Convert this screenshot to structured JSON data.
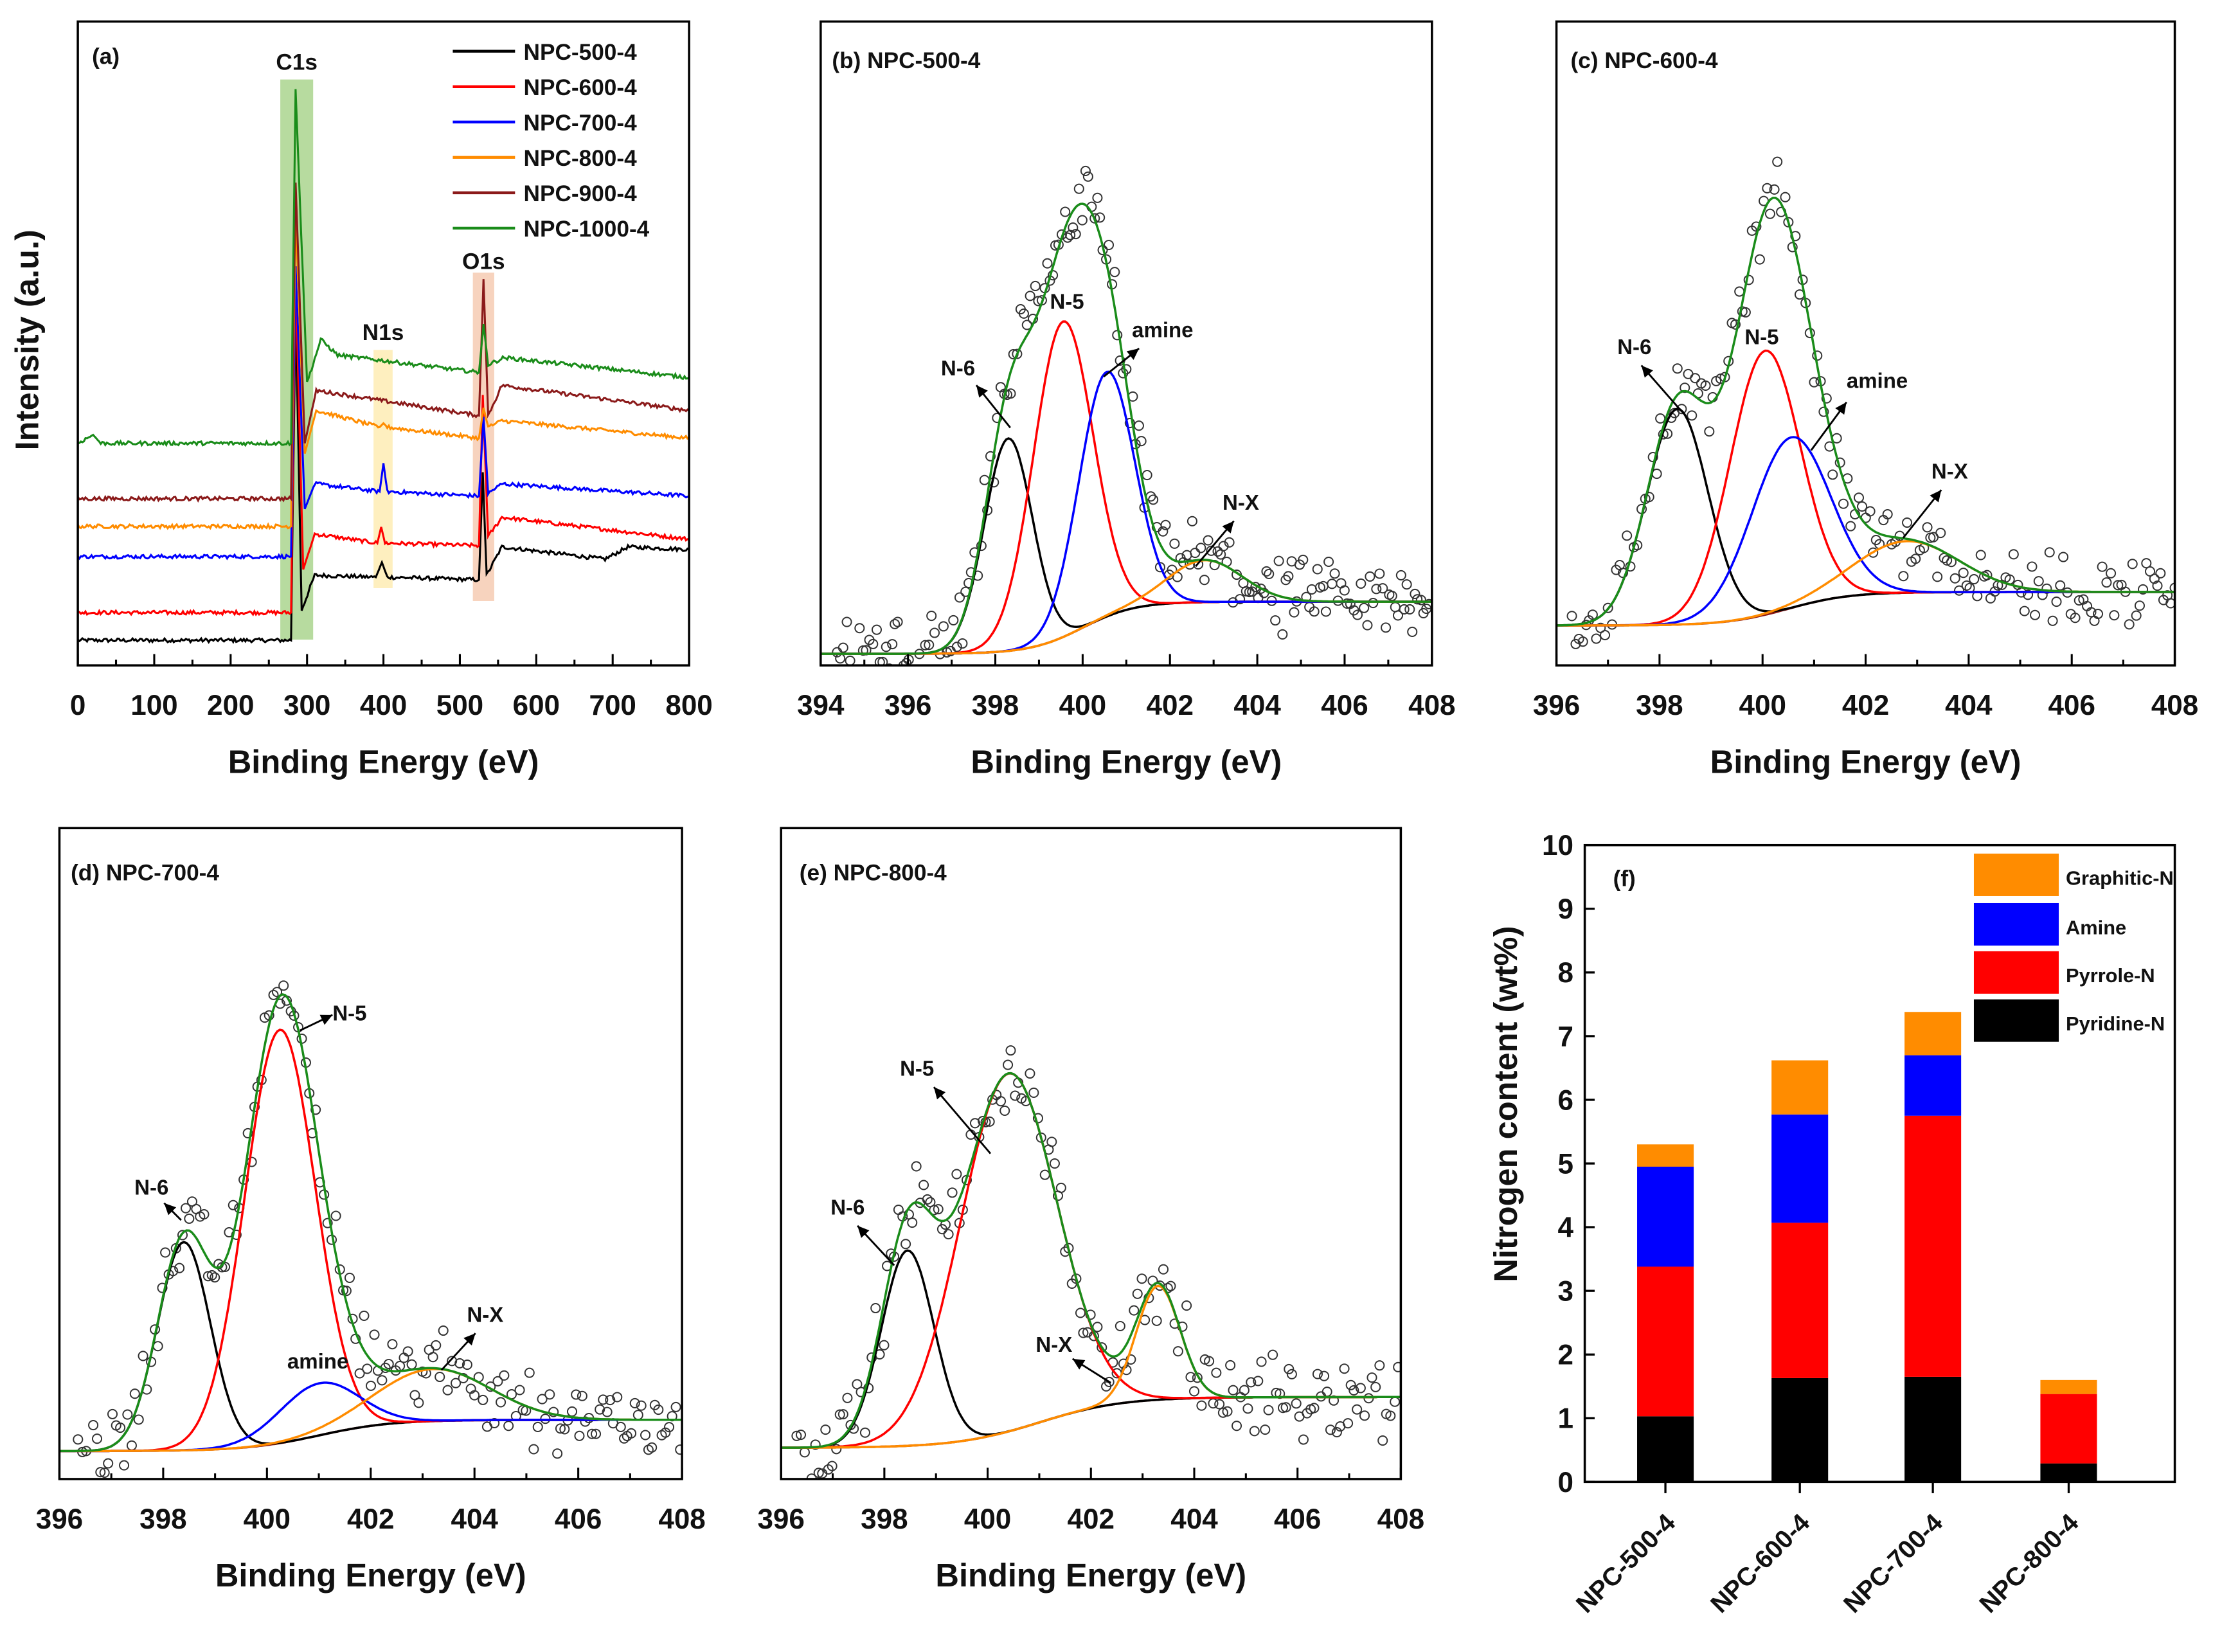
{
  "chart_data": [
    {
      "panel": "a",
      "type": "line",
      "title": "(a)",
      "xlabel": "Binding Energy (eV)",
      "ylabel": "Intensity (a.u.)",
      "xlim": [
        0,
        800
      ],
      "ylim": [
        0,
        100
      ],
      "xticks": [
        0,
        100,
        200,
        300,
        400,
        500,
        600,
        700,
        800
      ],
      "grid": false,
      "legend": "top-right",
      "bands": [
        {
          "label": "C1s",
          "range": [
            265,
            308
          ],
          "ylim": [
            4,
            91
          ],
          "color": "#9fcf7f"
        },
        {
          "label": "N1s",
          "range": [
            387,
            412
          ],
          "ylim": [
            12,
            49
          ],
          "color": "#fde9a9"
        },
        {
          "label": "O1s",
          "range": [
            517,
            545
          ],
          "ylim": [
            10,
            61
          ],
          "color": "#f4c4a8"
        }
      ],
      "series": [
        {
          "name": "NPC-500-4",
          "color": "#000000",
          "points": [
            [
              0,
              3.9
            ],
            [
              279,
              3.9
            ],
            [
              285,
              55
            ],
            [
              293,
              8.6
            ],
            [
              310,
              14
            ],
            [
              390,
              13.7
            ],
            [
              398,
              16
            ],
            [
              405,
              13.7
            ],
            [
              525,
              13.3
            ],
            [
              530,
              30
            ],
            [
              535,
              14
            ],
            [
              555,
              18.4
            ],
            [
              690,
              16.5
            ],
            [
              720,
              18.4
            ],
            [
              800,
              18
            ]
          ]
        },
        {
          "name": "NPC-600-4",
          "color": "#ff0000",
          "points": [
            [
              0,
              8.2
            ],
            [
              279,
              8.2
            ],
            [
              285,
              60
            ],
            [
              295,
              14.9
            ],
            [
              310,
              20.4
            ],
            [
              392,
              19
            ],
            [
              397,
              21.5
            ],
            [
              402,
              19
            ],
            [
              525,
              18.6
            ],
            [
              530,
              42
            ],
            [
              537,
              20
            ],
            [
              555,
              23
            ],
            [
              800,
              19.6
            ]
          ]
        },
        {
          "name": "NPC-700-4",
          "color": "#0000ff",
          "points": [
            [
              0,
              16.9
            ],
            [
              279,
              16.9
            ],
            [
              285,
              62
            ],
            [
              297,
              24.3
            ],
            [
              310,
              28.2
            ],
            [
              395,
              27
            ],
            [
              400,
              31.4
            ],
            [
              405,
              27
            ],
            [
              525,
              26.3
            ],
            [
              531,
              38.6
            ],
            [
              537,
              26.7
            ],
            [
              555,
              28.2
            ],
            [
              800,
              26.3
            ]
          ]
        },
        {
          "name": "NPC-800-4",
          "color": "#ff8c00",
          "points": [
            [
              0,
              21.6
            ],
            [
              279,
              21.6
            ],
            [
              285,
              70
            ],
            [
              297,
              32.9
            ],
            [
              312,
              39.6
            ],
            [
              395,
              37
            ],
            [
              400,
              37.6
            ],
            [
              405,
              37
            ],
            [
              525,
              35.3
            ],
            [
              531,
              40
            ],
            [
              537,
              37
            ],
            [
              555,
              38
            ],
            [
              800,
              35.3
            ]
          ]
        },
        {
          "name": "NPC-900-4",
          "color": "#8b1a1a",
          "points": [
            [
              0,
              25.9
            ],
            [
              279,
              25.9
            ],
            [
              285,
              75
            ],
            [
              297,
              34.5
            ],
            [
              312,
              42.7
            ],
            [
              525,
              38.8
            ],
            [
              531,
              60
            ],
            [
              537,
              38.8
            ],
            [
              555,
              43.5
            ],
            [
              800,
              39.6
            ]
          ]
        },
        {
          "name": "NPC-1000-4",
          "color": "#1a8c1a",
          "points": [
            [
              0,
              34.5
            ],
            [
              20,
              35.8
            ],
            [
              30,
              34.5
            ],
            [
              279,
              34.5
            ],
            [
              285,
              89.5
            ],
            [
              300,
              43.9
            ],
            [
              318,
              50.6
            ],
            [
              340,
              48.2
            ],
            [
              525,
              45.5
            ],
            [
              531,
              53
            ],
            [
              537,
              46.7
            ],
            [
              558,
              47.8
            ],
            [
              800,
              44.7
            ]
          ]
        }
      ]
    },
    {
      "panel": "b",
      "type": "line+scatter",
      "title": "(b) NPC-500-4",
      "xlabel": "Binding Energy (eV)",
      "xlim": [
        394,
        408
      ],
      "ylim": [
        0,
        100
      ],
      "xticks": [
        394,
        396,
        398,
        400,
        402,
        404,
        406,
        408
      ],
      "background": {
        "left": 1.8,
        "right": 9.9,
        "center": 400,
        "width": 0.6,
        "color": "#8b1a1a"
      },
      "envelope_color": "#1a8c1a",
      "components": [
        {
          "name": "N-6",
          "center": 398.3,
          "height": 33,
          "fwhm": 1.3,
          "color": "#000000"
        },
        {
          "name": "N-5",
          "center": 399.55,
          "height": 49,
          "fwhm": 1.6,
          "color": "#ff0000"
        },
        {
          "name": "amine",
          "center": 400.55,
          "height": 38,
          "fwhm": 1.5,
          "color": "#0000ff"
        },
        {
          "name": "N-X",
          "center": 402.8,
          "height": 6.5,
          "fwhm": 2.0,
          "color": "#ff8c00"
        }
      ]
    },
    {
      "panel": "c",
      "type": "line+scatter",
      "title": "(c) NPC-600-4",
      "xlabel": "Binding Energy (eV)",
      "xlim": [
        396,
        408
      ],
      "ylim": [
        0,
        100
      ],
      "xticks": [
        396,
        398,
        400,
        402,
        404,
        406,
        408
      ],
      "background": {
        "left": 6.2,
        "right": 11.4,
        "center": 400.5,
        "width": 0.6,
        "color": "#8b1a1a"
      },
      "envelope_color": "#1a8c1a",
      "components": [
        {
          "name": "N-6",
          "center": 398.35,
          "height": 33.5,
          "fwhm": 1.4,
          "color": "#000000"
        },
        {
          "name": "N-5",
          "center": 400.05,
          "height": 41,
          "fwhm": 1.6,
          "color": "#ff0000"
        },
        {
          "name": "amine",
          "center": 400.55,
          "height": 26.5,
          "fwhm": 1.8,
          "color": "#0000ff"
        },
        {
          "name": "N-X",
          "center": 402.8,
          "height": 8,
          "fwhm": 2.4,
          "color": "#ff8c00"
        }
      ]
    },
    {
      "panel": "d",
      "type": "line+scatter",
      "title": "(d) NPC-700-4",
      "xlabel": "Binding Energy (eV)",
      "xlim": [
        396,
        408
      ],
      "ylim": [
        0,
        100
      ],
      "xticks": [
        396,
        398,
        400,
        402,
        404,
        406,
        408
      ],
      "background": {
        "left": 4.3,
        "right": 9.1,
        "center": 401,
        "width": 0.7,
        "color": "#8b1a1a"
      },
      "envelope_color": "#1a8c1a",
      "components": [
        {
          "name": "N-6",
          "center": 398.4,
          "height": 32,
          "fwhm": 1.2,
          "color": "#000000"
        },
        {
          "name": "N-5",
          "center": 400.25,
          "height": 63.5,
          "fwhm": 1.6,
          "color": "#ff0000"
        },
        {
          "name": "amine",
          "center": 401.0,
          "height": 8,
          "fwhm": 1.8,
          "color": "#0000ff"
        },
        {
          "name": "N-X",
          "center": 403.2,
          "height": 8,
          "fwhm": 2.6,
          "color": "#ff8c00"
        }
      ]
    },
    {
      "panel": "e",
      "type": "line+scatter",
      "title": "(e) NPC-800-4",
      "xlabel": "Binding Energy (eV)",
      "xlim": [
        396,
        408
      ],
      "ylim": [
        0,
        100
      ],
      "xticks": [
        396,
        398,
        400,
        402,
        404,
        406,
        408
      ],
      "background": {
        "left": 4.8,
        "right": 12.6,
        "center": 401,
        "width": 0.8,
        "color": "#8b1a1a"
      },
      "envelope_color": "#1a8c1a",
      "components": [
        {
          "name": "N-6",
          "center": 398.45,
          "height": 30,
          "fwhm": 1.2,
          "color": "#000000"
        },
        {
          "name": "N-5",
          "center": 400.4,
          "height": 55,
          "fwhm": 2.2,
          "color": "#ff0000"
        },
        {
          "name": "N-X",
          "center": 403.3,
          "height": 17.5,
          "fwhm": 1.0,
          "color": "#ff8c00"
        }
      ]
    },
    {
      "panel": "f",
      "type": "bar",
      "stacked": true,
      "title": "(f)",
      "xlabel": "",
      "ylabel": "Nitrogen content (wt%)",
      "ylim": [
        0,
        10
      ],
      "yticks": [
        0,
        1,
        2,
        3,
        4,
        5,
        6,
        7,
        8,
        9,
        10
      ],
      "legend": "top-right",
      "categories": [
        "NPC-500-4",
        "NPC-600-4",
        "NPC-700-4",
        "NPC-800-4"
      ],
      "series": [
        {
          "name": "Pyridine-N",
          "color": "#000000",
          "values": [
            1.03,
            1.63,
            1.65,
            0.29
          ]
        },
        {
          "name": "Pyrrole-N",
          "color": "#ff0000",
          "values": [
            2.35,
            2.44,
            4.1,
            1.09
          ]
        },
        {
          "name": "Amine",
          "color": "#0000ff",
          "values": [
            1.57,
            1.7,
            0.95,
            0.0
          ]
        },
        {
          "name": "Graphitic-N",
          "color": "#ff8c00",
          "values": [
            0.35,
            0.85,
            0.68,
            0.22
          ]
        }
      ]
    }
  ]
}
